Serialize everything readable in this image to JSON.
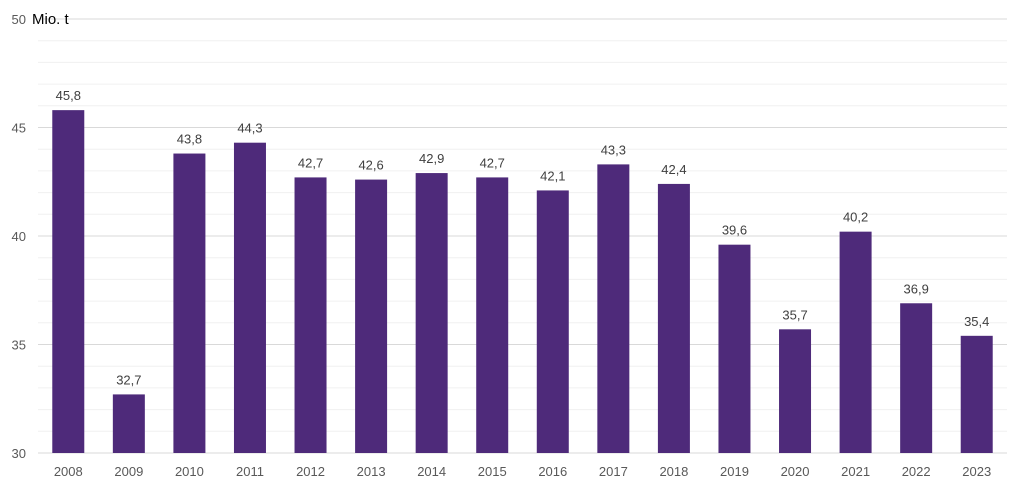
{
  "chart_data": {
    "type": "bar",
    "title": "",
    "unit_label": "Mio. t",
    "xlabel": "",
    "ylabel": "",
    "ylim": [
      30,
      50
    ],
    "yticks": [
      30,
      35,
      40,
      45,
      50
    ],
    "grid": true,
    "legend": "none",
    "bar_color": "#4e2a7a",
    "categories": [
      "2008",
      "2009",
      "2010",
      "2011",
      "2012",
      "2013",
      "2014",
      "2015",
      "2016",
      "2017",
      "2018",
      "2019",
      "2020",
      "2021",
      "2022",
      "2023"
    ],
    "values": [
      45.8,
      32.7,
      43.8,
      44.3,
      42.7,
      42.6,
      42.9,
      42.7,
      42.1,
      43.3,
      42.4,
      39.6,
      35.7,
      40.2,
      36.9,
      35.4
    ],
    "value_labels": [
      "45,8",
      "32,7",
      "43,8",
      "44,3",
      "42,7",
      "42,6",
      "42,9",
      "42,7",
      "42,1",
      "43,3",
      "42,4",
      "39,6",
      "35,7",
      "40,2",
      "36,9",
      "35,4"
    ]
  }
}
